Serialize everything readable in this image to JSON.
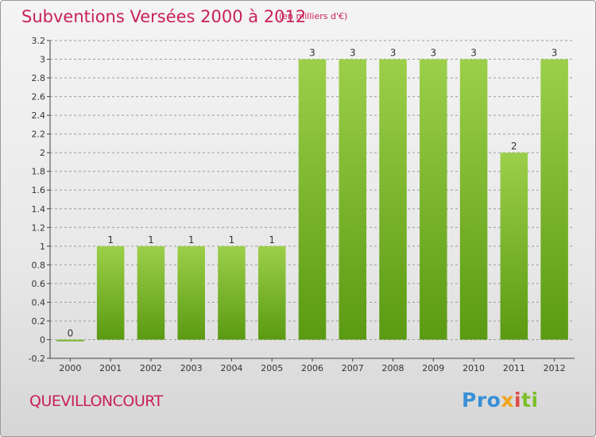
{
  "title": "Subventions Versées 2000 à 2012",
  "subtitle": "(en milliers d'€)",
  "town": "QUEVILLONCOURT",
  "logo": {
    "text": "Proxiti"
  },
  "colors": {
    "title": "#c8205a",
    "bar_light": "#9ccf4a",
    "bar_dark": "#5a9a12",
    "grid": "#9c9c9c"
  },
  "chart_data": {
    "type": "bar",
    "categories": [
      "2000",
      "2001",
      "2002",
      "2003",
      "2004",
      "2005",
      "2006",
      "2007",
      "2008",
      "2009",
      "2010",
      "2011",
      "2012"
    ],
    "values": [
      0,
      1,
      1,
      1,
      1,
      1,
      3,
      3,
      3,
      3,
      3,
      2,
      3
    ],
    "data_labels": [
      "0",
      "1",
      "1",
      "1",
      "1",
      "1",
      "3",
      "3",
      "3",
      "3",
      "3",
      "2",
      "3"
    ],
    "y_ticks": [
      -0.2,
      0,
      0.2,
      0.4,
      0.6,
      0.8,
      1,
      1.2,
      1.4,
      1.6,
      1.8,
      2,
      2.2,
      2.4,
      2.6,
      2.8,
      3,
      3.2
    ],
    "y_tick_labels": [
      "-0.2",
      "0",
      "0.2",
      "0.4",
      "0.6",
      "0.8",
      "1",
      "1.2",
      "1.4",
      "1.6",
      "1.8",
      "2",
      "2.2",
      "2.4",
      "2.6",
      "2.8",
      "3",
      "3.2"
    ],
    "ylim": [
      -0.2,
      3.2
    ],
    "grid": true,
    "grid_style": "dashed"
  }
}
